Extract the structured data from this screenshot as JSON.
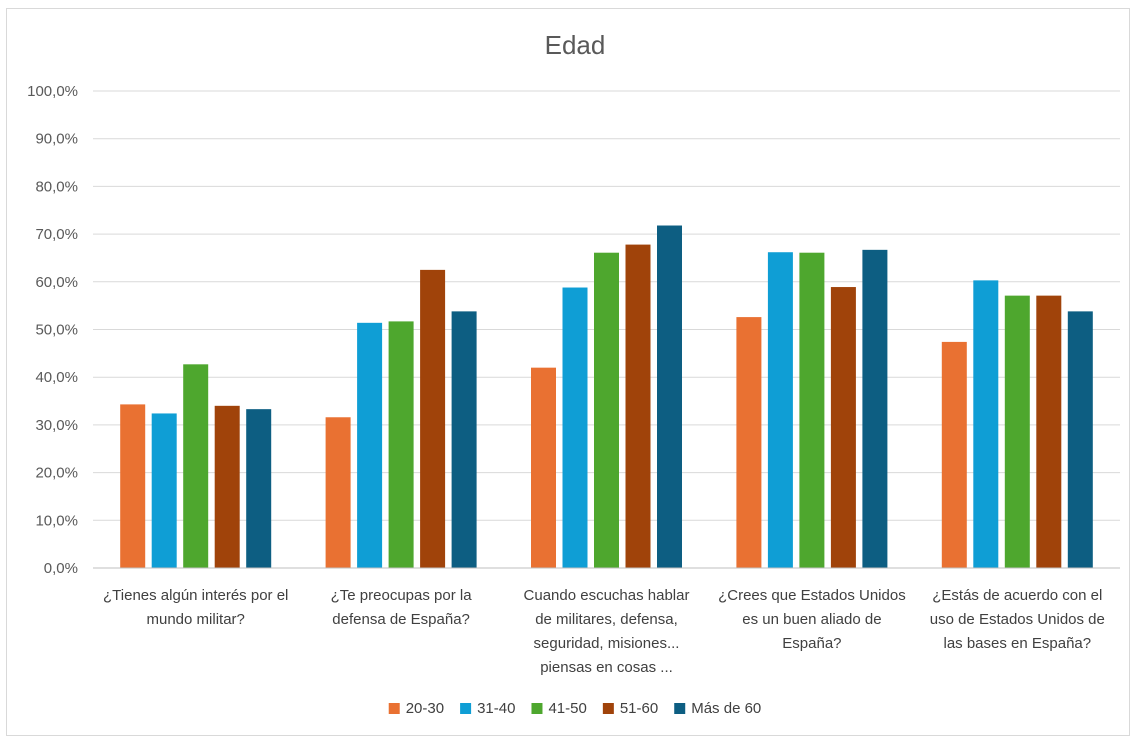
{
  "chart_data": {
    "type": "bar",
    "title": "Edad",
    "xlabel": "",
    "ylabel": "",
    "ylim": [
      0,
      100
    ],
    "yticks": [
      "0,0%",
      "10,0%",
      "20,0%",
      "30,0%",
      "40,0%",
      "50,0%",
      "60,0%",
      "70,0%",
      "80,0%",
      "90,0%",
      "100,0%"
    ],
    "grid": true,
    "legend_position": "bottom",
    "categories": [
      [
        "¿Tienes algún interés por el",
        "mundo militar?"
      ],
      [
        "¿Te preocupas por la",
        "defensa de España?"
      ],
      [
        "Cuando escuchas hablar",
        "de militares, defensa,",
        "seguridad, misiones...",
        "piensas en cosas ..."
      ],
      [
        "¿Crees que Estados Unidos",
        "es un buen aliado de",
        "España?"
      ],
      [
        "¿Estás de acuerdo con el",
        "uso de Estados Unidos de",
        "las bases en España?"
      ]
    ],
    "series": [
      {
        "name": "20-30",
        "color": "#E97132",
        "values": [
          34.3,
          31.6,
          42.0,
          52.6,
          47.4
        ]
      },
      {
        "name": "31-40",
        "color": "#0F9ED5",
        "values": [
          32.4,
          51.4,
          58.8,
          66.2,
          60.3
        ]
      },
      {
        "name": "41-50",
        "color": "#4EA72E",
        "values": [
          42.7,
          51.7,
          66.1,
          66.1,
          57.1
        ]
      },
      {
        "name": "51-60",
        "color": "#A0430A",
        "values": [
          34.0,
          62.5,
          67.8,
          58.9,
          57.1
        ]
      },
      {
        "name": "Más de 60",
        "color": "#0D5E82",
        "values": [
          33.3,
          53.8,
          71.8,
          66.7,
          53.8
        ]
      }
    ]
  },
  "colors": {
    "grid": "#d9d9d9",
    "axis": "#bfbfbf",
    "frame_border": "#d9d9d9"
  }
}
